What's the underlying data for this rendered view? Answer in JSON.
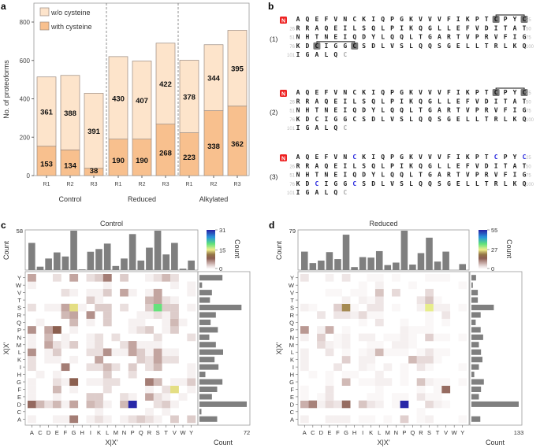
{
  "panel_labels": {
    "a": "a",
    "b": "b",
    "c": "c",
    "d": "d"
  },
  "colors": {
    "without_cys": "#fde4cb",
    "with_cys": "#f8c08e",
    "bar_edge": "#9a8a80",
    "marginal_bar": "#7f7f7f",
    "ss_box": "#7a7a7a",
    "cys_blue": "#2222dd",
    "n_term": "#ee2222"
  },
  "chart_data": [
    {
      "type": "bar",
      "stacked": true,
      "ylabel": "No. of proteoforms",
      "ylim": [
        0,
        900
      ],
      "yticks": [
        0,
        200,
        400,
        600,
        800
      ],
      "categories": [
        "R1",
        "R2",
        "R3",
        "R1",
        "R2",
        "R3",
        "R1",
        "R2",
        "R3"
      ],
      "groups": [
        "Control",
        "Reduced",
        "Alkylated"
      ],
      "series": [
        {
          "name": "with cysteine",
          "values": [
            153,
            134,
            38,
            190,
            190,
            268,
            223,
            338,
            362
          ]
        },
        {
          "name": "w/o cysteine",
          "values": [
            361,
            388,
            391,
            430,
            407,
            422,
            378,
            344,
            395
          ]
        }
      ],
      "legend": {
        "placement": "top-left",
        "entries": [
          "w/o cysteine",
          "with cysteine"
        ]
      }
    },
    {
      "type": "heatmap",
      "title": "Control",
      "xlabel": "X|X'",
      "ylabel": "X|X'",
      "letters": [
        "A",
        "C",
        "D",
        "E",
        "F",
        "G",
        "H",
        "I",
        "K",
        "L",
        "M",
        "N",
        "P",
        "Q",
        "R",
        "S",
        "T",
        "V",
        "W",
        "Y"
      ],
      "colorbar": {
        "label": "Count",
        "max": 31,
        "ticks": [
          0,
          15,
          31
        ]
      },
      "top_marginal": {
        "label": "Count",
        "max": 58,
        "values": [
          40,
          5,
          17,
          26,
          20,
          58,
          1,
          27,
          31,
          39,
          6,
          17,
          53,
          14,
          33,
          58,
          23,
          40,
          2,
          14
        ]
      },
      "right_marginal": {
        "label": "Count",
        "max": 72,
        "values": [
          27,
          3,
          72,
          19,
          27,
          35,
          9,
          29,
          23,
          36,
          25,
          15,
          28,
          17,
          25,
          64,
          16,
          19,
          4,
          35
        ]
      },
      "cells": {
        "Y": {
          "A": 5,
          "E": 2,
          "G": 5,
          "I": 2,
          "K": 3,
          "L": 7,
          "N": 3,
          "R": 1,
          "S": 2,
          "T": 4,
          "V": 2
        },
        "W": {
          "A": 1,
          "L": 1,
          "V": 1,
          "Y": 1
        },
        "V": {
          "F": 2,
          "G": 1,
          "I": 1,
          "K": 1,
          "L": 3,
          "N": 5,
          "P": 1,
          "R": 1,
          "S": 5,
          "Y": 1
        },
        "T": {
          "I": 3,
          "K": 1,
          "R": 4,
          "S": 5,
          "T": 2,
          "V": 1
        },
        "S": {
          "A": 2,
          "D": 1,
          "E": 1,
          "F": 5,
          "G": 15,
          "H": 1,
          "K": 3,
          "L": 3,
          "N": 2,
          "R": 3,
          "S": 20,
          "T": 3,
          "V": 3,
          "Y": 1
        },
        "R": {
          "F": 4,
          "G": 5,
          "I": 6,
          "L": 3,
          "Q": 1,
          "R": 1,
          "S": 2,
          "T": 1,
          "V": 3
        },
        "Q": {
          "C": 1,
          "G": 4,
          "I": 1,
          "L": 3,
          "P": 1,
          "Q": 1,
          "T": 1,
          "V": 4,
          "W": 1
        },
        "P": {
          "A": 6,
          "D": 5,
          "E": 9,
          "G": 1,
          "P": 1,
          "Q": 2,
          "R": 3,
          "T": 1,
          "V": 3
        },
        "N": {
          "A": 1,
          "D": 4,
          "F": 1,
          "I": 1,
          "K": 2,
          "M": 2,
          "S": 2,
          "Y": 2
        },
        "M": {
          "A": 1,
          "D": 5,
          "E": 2,
          "F": 1,
          "G": 3,
          "I": 1,
          "K": 2,
          "N": 2,
          "P": 5,
          "Q": 1,
          "R": 1,
          "S": 1
        },
        "L": {
          "A": 6,
          "D": 1,
          "E": 3,
          "I": 2,
          "K": 2,
          "L": 6,
          "M": 1,
          "N": 1,
          "P": 5,
          "Q": 3,
          "R": 1,
          "S": 5,
          "T": 1,
          "V": 1
        },
        "K": {
          "A": 2,
          "D": 1,
          "E": 1,
          "G": 1,
          "K": 5,
          "Q": 3,
          "R": 2,
          "S": 5,
          "T": 2,
          "V": 2
        },
        "I": {
          "A": 2,
          "F": 7,
          "I": 2,
          "K": 2,
          "L": 4,
          "M": 2,
          "P": 3,
          "R": 2,
          "S": 4,
          "Y": 1
        },
        "H": {
          "C": 1,
          "E": 1,
          "L": 3,
          "P": 2,
          "Y": 1
        },
        "G": {
          "A": 1,
          "E": 2,
          "F": 1,
          "G": 9,
          "I": 1,
          "K": 1,
          "L": 2,
          "M": 2,
          "R": 7,
          "S": 4,
          "V": 1,
          "W": 1,
          "Y": 3
        },
        "F": {
          "A": 1,
          "E": 4,
          "G": 1,
          "L": 2,
          "R": 1,
          "T": 2,
          "V": 15,
          "Y": 1
        },
        "E": {
          "A": 1,
          "E": 1,
          "I": 3,
          "K": 3,
          "N": 2,
          "P": 1,
          "R": 5,
          "S": 2,
          "T": 1,
          "W": 1
        },
        "D": {
          "A": 8,
          "C": 4,
          "D": 2,
          "E": 4,
          "F": 1,
          "G": 5,
          "I": 4,
          "K": 3,
          "L": 1,
          "N": 4,
          "P": 31,
          "S": 2,
          "T": 3,
          "V": 1
        },
        "C": {
          "K": 1,
          "R": 1,
          "T": 1
        },
        "A": {
          "A": 1,
          "E": 1,
          "F": 1,
          "G": 7,
          "I": 1,
          "K": 2,
          "L": 1,
          "N": 1,
          "P": 2,
          "Q": 3,
          "R": 2,
          "S": 1,
          "V": 3,
          "Y": 3
        }
      }
    },
    {
      "type": "heatmap",
      "title": "Reduced",
      "xlabel": "X|X'",
      "ylabel": "X|X'",
      "letters": [
        "A",
        "C",
        "D",
        "E",
        "F",
        "G",
        "H",
        "I",
        "K",
        "L",
        "M",
        "N",
        "P",
        "Q",
        "R",
        "S",
        "T",
        "V",
        "W",
        "Y"
      ],
      "colorbar": {
        "label": "Count",
        "max": 55,
        "ticks": [
          0,
          27,
          55
        ]
      },
      "top_marginal": {
        "label": "Count",
        "max": 79,
        "values": [
          37,
          14,
          19,
          36,
          22,
          71,
          6,
          26,
          25,
          38,
          10,
          15,
          79,
          11,
          34,
          65,
          17,
          37,
          0,
          12
        ]
      },
      "right_marginal": {
        "label": "Count",
        "max": 133,
        "values": [
          25,
          0,
          133,
          21,
          27,
          35,
          8,
          21,
          31,
          27,
          21,
          33,
          26,
          12,
          26,
          63,
          18,
          18,
          4,
          13
        ]
      },
      "cells": {
        "Y": {
          "A": 3,
          "E": 2,
          "G": 3,
          "K": 1,
          "L": 1,
          "N": 1,
          "S": 1,
          "T": 1,
          "V": 1
        },
        "W": {
          "I": 1,
          "L": 2,
          "Q": 1,
          "Y": 1
        },
        "V": {
          "E": 1,
          "F": 1,
          "H": 1,
          "I": 1,
          "L": 6,
          "N": 4,
          "S": 4
        },
        "T": {
          "G": 2,
          "I": 2,
          "K": 1,
          "L": 3,
          "R": 3,
          "S": 6,
          "T": 1
        },
        "S": {
          "A": 2,
          "C": 1,
          "F": 5,
          "G": 22,
          "H": 1,
          "K": 3,
          "L": 3,
          "N": 1,
          "R": 2,
          "S": 28,
          "T": 2,
          "V": 2,
          "Y": 1
        },
        "R": {
          "D": 3,
          "F": 3,
          "G": 3,
          "H": 2,
          "I": 4,
          "K": 1,
          "L": 1,
          "S": 1,
          "V": 3
        },
        "Q": {
          "I": 1,
          "L": 3,
          "P": 1,
          "S": 1,
          "V": 1
        },
        "P": {
          "A": 10,
          "D": 2,
          "E": 8,
          "G": 1,
          "P": 2,
          "Q": 1,
          "R": 1,
          "S": 1
        },
        "N": {
          "A": 2,
          "D": 5,
          "F": 1,
          "G": 2,
          "I": 2,
          "K": 2,
          "M": 1,
          "N": 1,
          "P": 2,
          "Q": 1,
          "S": 5,
          "T": 1,
          "V": 1,
          "Y": 1
        },
        "M": {
          "D": 4,
          "E": 2,
          "F": 1,
          "G": 2,
          "K": 1,
          "L": 1,
          "N": 2,
          "P": 2,
          "Q": 1
        },
        "L": {
          "A": 2,
          "E": 3,
          "G": 1,
          "I": 1,
          "K": 2,
          "L": 7,
          "M": 1,
          "N": 1,
          "P": 1,
          "R": 1,
          "S": 3,
          "T": 1,
          "V": 1
        },
        "K": {
          "A": 2,
          "G": 5,
          "I": 2,
          "K": 2,
          "Q": 7,
          "R": 4,
          "S": 4,
          "T": 1
        },
        "I": {
          "A": 2,
          "F": 3,
          "I": 2,
          "K": 1,
          "M": 2,
          "P": 1,
          "R": 3,
          "S": 1,
          "Y": 1
        },
        "H": {
          "C": 1,
          "E": 1,
          "G": 1,
          "H": 1,
          "L": 2,
          "P": 1
        },
        "G": {
          "E": 1,
          "G": 7,
          "I": 1,
          "K": 1,
          "L": 2,
          "M": 2,
          "P": 1,
          "R": 6,
          "S": 2,
          "T": 1,
          "V": 1,
          "Y": 1
        },
        "F": {
          "A": 1,
          "E": 3,
          "L": 1,
          "R": 1,
          "T": 1,
          "V": 14
        },
        "E": {
          "A": 1,
          "D": 1,
          "E": 3,
          "K": 1,
          "L": 1,
          "N": 1,
          "P": 1,
          "R": 3,
          "S": 1,
          "T": 1
        },
        "D": {
          "A": 8,
          "C": 12,
          "D": 2,
          "E": 4,
          "F": 3,
          "G": 14,
          "I": 6,
          "K": 3,
          "L": 2,
          "N": 1,
          "P": 55,
          "S": 4,
          "T": 2,
          "V": 1
        },
        "C": {
          "R": 1
        },
        "A": {
          "A": 2,
          "E": 2,
          "F": 2,
          "G": 2,
          "I": 1,
          "K": 1,
          "M": 1,
          "P": 5,
          "R": 1,
          "S": 2,
          "Y": 1
        }
      }
    }
  ],
  "sequence_panel": {
    "n_terminus_label": "N",
    "rows": [
      {
        "start": "1",
        "end": "25",
        "residues": "AQEFVNCKIQPGKVVVFIKPTCPYC"
      },
      {
        "start": "26",
        "end": "50",
        "residues": "RRAQEILSQLPIKQGLLEFVDITAT"
      },
      {
        "start": "51",
        "end": "75",
        "residues": "NHTNEIQDYLQQLTGARTVPRVFIG"
      },
      {
        "start": "76",
        "end": "100",
        "residues": "KDCIGGCSDLVSLQQSGELLTRLKQ"
      },
      {
        "start": "101",
        "end": "",
        "residues": "IGALQC"
      }
    ],
    "proteoforms": [
      {
        "label": "(1)",
        "disulfide_boxed": [
          [
            0,
            21
          ],
          [
            0,
            24
          ],
          [
            3,
            2
          ],
          [
            3,
            6
          ]
        ],
        "bonds": [
          [
            0,
            21,
            24
          ],
          [
            3,
            2,
            6
          ]
        ],
        "blue_cys": []
      },
      {
        "label": "(2)",
        "disulfide_boxed": [
          [
            0,
            21
          ],
          [
            0,
            24
          ]
        ],
        "bonds": [
          [
            0,
            21,
            24
          ]
        ],
        "blue_cys": []
      },
      {
        "label": "(3)",
        "disulfide_boxed": [],
        "bonds": [],
        "blue_cys": [
          [
            0,
            6
          ],
          [
            0,
            21
          ],
          [
            0,
            24
          ],
          [
            3,
            2
          ],
          [
            3,
            6
          ]
        ]
      }
    ]
  }
}
